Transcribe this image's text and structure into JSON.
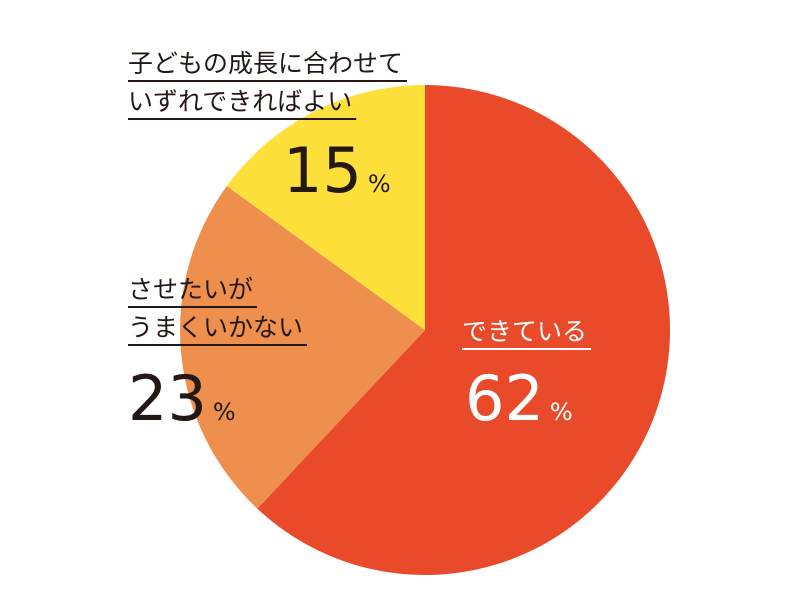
{
  "chart_data": {
    "type": "pie",
    "categories": [
      [
        "できている"
      ],
      [
        "させたいが",
        "うまくいかない"
      ],
      [
        "子どもの成長に合わせて",
        "いずれできればよい"
      ]
    ],
    "values": [
      62,
      23,
      15
    ],
    "unit": "%",
    "colors": [
      "#e84a2a",
      "#ef8f4e",
      "#fde03a"
    ],
    "label_colors": [
      "#ffffff",
      "#231815",
      "#231815"
    ]
  }
}
